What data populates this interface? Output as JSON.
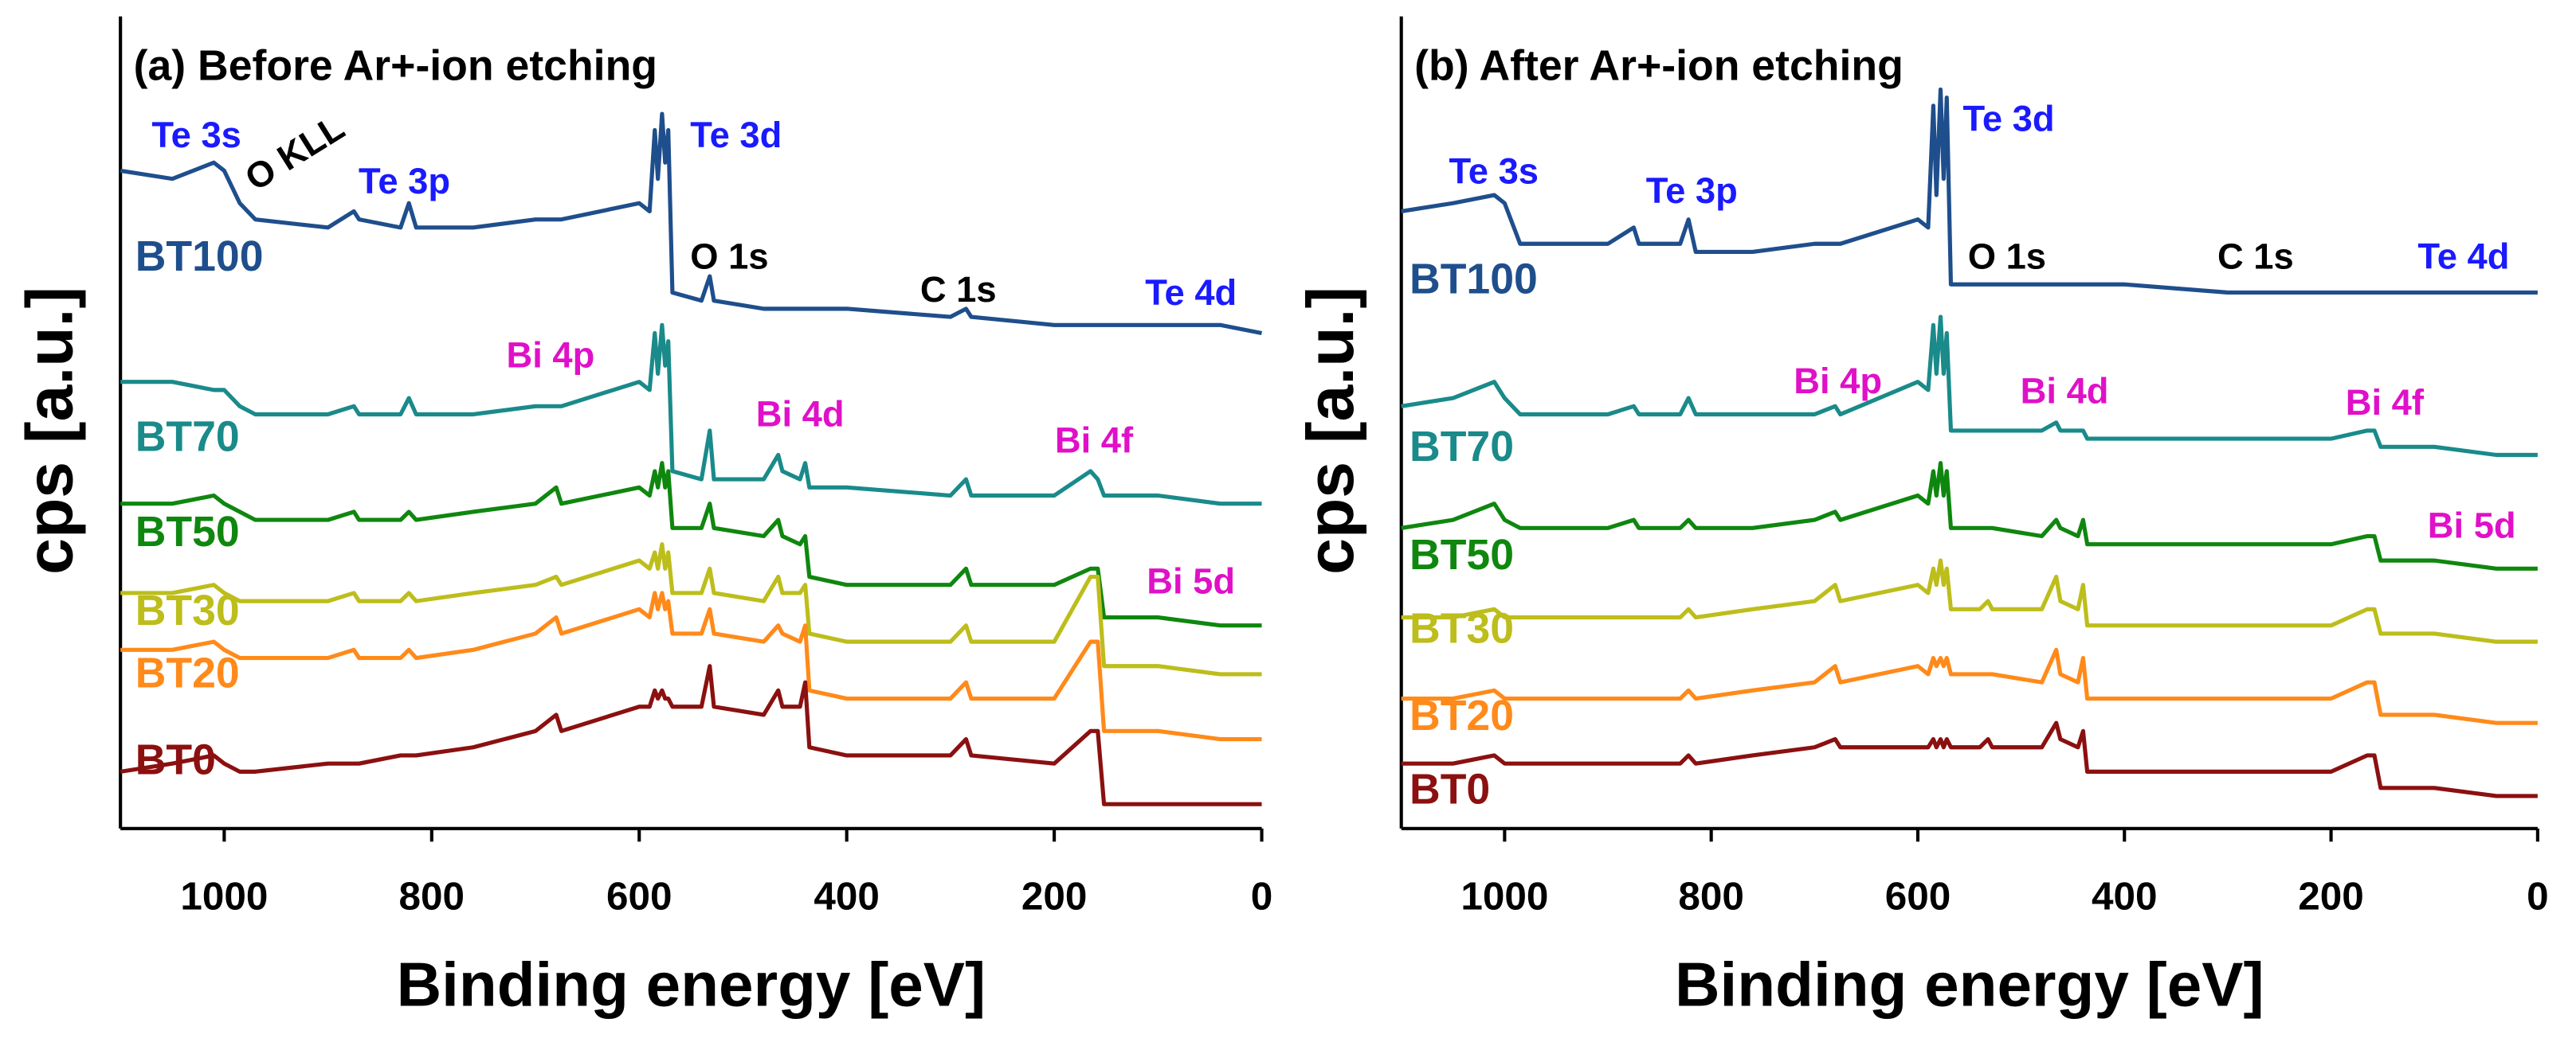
{
  "chart_data": [
    {
      "type": "line",
      "title": "(a) Before Ar+-ion etching",
      "x_label": "Binding energy [eV]",
      "y_label": "cps [a.u.]",
      "xlim": [
        1100,
        0
      ],
      "xticks": [
        1000,
        800,
        600,
        400,
        200,
        0
      ],
      "ylim": [
        0,
        100
      ],
      "x": [
        1100,
        1050,
        1010,
        1000,
        985,
        970,
        900,
        875,
        870,
        830,
        822,
        815,
        760,
        700,
        680,
        675,
        600,
        590,
        585,
        582,
        578,
        575,
        572,
        568,
        540,
        532,
        528,
        480,
        466,
        462,
        445,
        440,
        436,
        400,
        300,
        285,
        280,
        200,
        165,
        158,
        152,
        100,
        40,
        0
      ],
      "series": [
        {
          "name": "BT100",
          "color": "#1f4e8c",
          "values": [
            81,
            80,
            82,
            81,
            77,
            75,
            74,
            76,
            75,
            74,
            77,
            74,
            74,
            75,
            75,
            75,
            77,
            76,
            86,
            80,
            88,
            82,
            86,
            66,
            65,
            68,
            65,
            64,
            64,
            64,
            64,
            64,
            64,
            64,
            63,
            64,
            63,
            62,
            62,
            62,
            62,
            62,
            62,
            61
          ]
        },
        {
          "name": "BT70",
          "color": "#1a8a8a",
          "values": [
            55,
            55,
            54,
            54,
            52,
            51,
            51,
            52,
            51,
            51,
            53,
            51,
            51,
            52,
            52,
            52,
            55,
            54,
            61,
            56,
            62,
            57,
            60,
            44,
            43,
            49,
            43,
            43,
            46,
            44,
            43,
            45,
            42,
            42,
            41,
            43,
            41,
            41,
            44,
            43,
            41,
            41,
            40,
            40
          ]
        },
        {
          "name": "BT50",
          "color": "#0f870f",
          "values": [
            40,
            40,
            41,
            40,
            39,
            38,
            38,
            39,
            38,
            38,
            39,
            38,
            39,
            40,
            42,
            40,
            42,
            41,
            44,
            42,
            45,
            42,
            44,
            37,
            37,
            40,
            37,
            36,
            38,
            36,
            35,
            36,
            31,
            30,
            30,
            32,
            30,
            30,
            32,
            32,
            26,
            26,
            25,
            25
          ]
        },
        {
          "name": "BT30",
          "color": "#bdbd1c",
          "values": [
            29,
            29,
            30,
            29,
            28,
            28,
            28,
            29,
            28,
            28,
            29,
            28,
            29,
            30,
            31,
            30,
            33,
            32,
            34,
            32,
            35,
            32,
            34,
            29,
            29,
            32,
            29,
            28,
            31,
            29,
            29,
            30,
            24,
            23,
            23,
            25,
            23,
            23,
            31,
            31,
            20,
            20,
            19,
            19
          ]
        },
        {
          "name": "BT20",
          "color": "#ff8a1a",
          "values": [
            22,
            22,
            23,
            22,
            21,
            21,
            21,
            22,
            21,
            21,
            22,
            21,
            22,
            24,
            26,
            24,
            27,
            26,
            29,
            27,
            29,
            27,
            28,
            24,
            24,
            27,
            24,
            23,
            25,
            24,
            23,
            25,
            17,
            16,
            16,
            18,
            16,
            16,
            23,
            23,
            12,
            12,
            11,
            11
          ]
        },
        {
          "name": "BT0",
          "color": "#8b1010",
          "values": [
            7,
            8,
            9,
            8,
            7,
            7,
            8,
            8,
            8,
            9,
            9,
            9,
            10,
            12,
            14,
            12,
            15,
            15,
            17,
            16,
            17,
            16,
            16,
            15,
            15,
            20,
            15,
            14,
            17,
            15,
            15,
            18,
            10,
            9,
            9,
            11,
            9,
            8,
            12,
            12,
            3,
            3,
            3,
            3
          ]
        }
      ],
      "annotations": [
        {
          "text": "Te 3s",
          "color": "#1a1aff"
        },
        {
          "text": "O KLL",
          "color": "#000000"
        },
        {
          "text": "Te 3p",
          "color": "#1a1aff"
        },
        {
          "text": "Te 3d",
          "color": "#1a1aff"
        },
        {
          "text": "O 1s",
          "color": "#000000"
        },
        {
          "text": "C 1s",
          "color": "#000000"
        },
        {
          "text": "Te 4d",
          "color": "#1a1aff"
        },
        {
          "text": "Bi 4p",
          "color": "#e010c8"
        },
        {
          "text": "Bi 4d",
          "color": "#e010c8"
        },
        {
          "text": "Bi 4f",
          "color": "#e010c8"
        },
        {
          "text": "Bi 5d",
          "color": "#e010c8"
        }
      ]
    },
    {
      "type": "line",
      "title": "(b) After Ar+-ion etching",
      "x_label": "Binding energy [eV]",
      "y_label": "cps [a.u.]",
      "xlim": [
        1100,
        0
      ],
      "xticks": [
        1000,
        800,
        600,
        400,
        200,
        0
      ],
      "ylim": [
        0,
        100
      ],
      "x": [
        1100,
        1050,
        1010,
        1000,
        985,
        970,
        900,
        875,
        870,
        830,
        822,
        815,
        760,
        700,
        680,
        675,
        600,
        590,
        585,
        582,
        578,
        575,
        572,
        568,
        540,
        532,
        528,
        480,
        466,
        462,
        445,
        440,
        436,
        400,
        300,
        285,
        280,
        200,
        165,
        158,
        152,
        100,
        40,
        0
      ],
      "series": [
        {
          "name": "BT100",
          "color": "#1f4e8c",
          "values": [
            76,
            77,
            78,
            77,
            72,
            72,
            72,
            74,
            72,
            72,
            75,
            71,
            71,
            72,
            72,
            72,
            75,
            74,
            89,
            78,
            91,
            80,
            90,
            67,
            67,
            67,
            67,
            67,
            67,
            67,
            67,
            67,
            67,
            67,
            66,
            66,
            66,
            66,
            66,
            66,
            66,
            66,
            66,
            66
          ]
        },
        {
          "name": "BT70",
          "color": "#1a8a8a",
          "values": [
            52,
            53,
            55,
            53,
            51,
            51,
            51,
            52,
            51,
            51,
            53,
            51,
            51,
            51,
            52,
            51,
            55,
            54,
            62,
            56,
            63,
            56,
            61,
            49,
            49,
            49,
            49,
            49,
            50,
            49,
            49,
            49,
            48,
            48,
            48,
            48,
            48,
            48,
            49,
            49,
            47,
            47,
            46,
            46
          ]
        },
        {
          "name": "BT50",
          "color": "#0f870f",
          "values": [
            37,
            38,
            40,
            38,
            37,
            37,
            37,
            38,
            37,
            37,
            38,
            37,
            37,
            38,
            39,
            38,
            41,
            40,
            44,
            41,
            45,
            41,
            44,
            37,
            37,
            37,
            37,
            36,
            38,
            37,
            36,
            38,
            35,
            35,
            35,
            35,
            35,
            35,
            36,
            36,
            33,
            33,
            32,
            32
          ]
        },
        {
          "name": "BT30",
          "color": "#bdbd1c",
          "values": [
            26,
            26,
            27,
            26,
            26,
            26,
            26,
            26,
            26,
            26,
            27,
            26,
            27,
            28,
            30,
            28,
            30,
            29,
            32,
            30,
            33,
            30,
            32,
            27,
            27,
            28,
            27,
            27,
            31,
            28,
            27,
            30,
            25,
            25,
            25,
            25,
            25,
            25,
            27,
            27,
            24,
            24,
            23,
            23
          ]
        },
        {
          "name": "BT20",
          "color": "#ff8a1a",
          "values": [
            16,
            16,
            17,
            16,
            16,
            16,
            16,
            16,
            16,
            16,
            17,
            16,
            17,
            18,
            20,
            18,
            20,
            19,
            21,
            20,
            21,
            20,
            21,
            19,
            19,
            19,
            19,
            18,
            22,
            19,
            18,
            21,
            16,
            16,
            16,
            16,
            16,
            16,
            18,
            18,
            14,
            14,
            13,
            13
          ]
        },
        {
          "name": "BT0",
          "color": "#8b1010",
          "values": [
            8,
            8,
            9,
            8,
            8,
            8,
            8,
            8,
            8,
            8,
            9,
            8,
            9,
            10,
            11,
            10,
            10,
            10,
            11,
            10,
            11,
            10,
            11,
            10,
            10,
            11,
            10,
            10,
            13,
            11,
            10,
            12,
            7,
            7,
            7,
            7,
            7,
            7,
            9,
            9,
            5,
            5,
            4,
            4
          ]
        }
      ],
      "annotations": [
        {
          "text": "Te 3s",
          "color": "#1a1aff"
        },
        {
          "text": "Te 3p",
          "color": "#1a1aff"
        },
        {
          "text": "Te 3d",
          "color": "#1a1aff"
        },
        {
          "text": "O 1s",
          "color": "#000000"
        },
        {
          "text": "C 1s",
          "color": "#000000"
        },
        {
          "text": "Te 4d",
          "color": "#1a1aff"
        },
        {
          "text": "Bi 4p",
          "color": "#e010c8"
        },
        {
          "text": "Bi 4d",
          "color": "#e010c8"
        },
        {
          "text": "Bi 4f",
          "color": "#e010c8"
        },
        {
          "text": "Bi 5d",
          "color": "#e010c8"
        }
      ]
    }
  ]
}
